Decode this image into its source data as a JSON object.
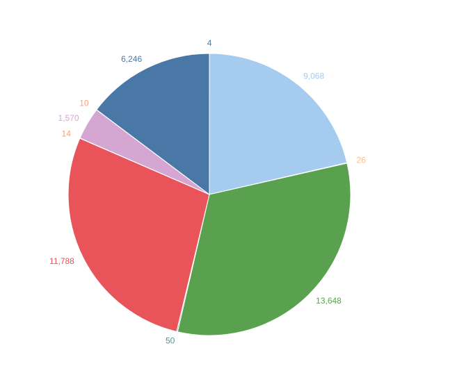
{
  "chart_data": {
    "type": "pie",
    "values": [
      4,
      9068,
      26,
      13648,
      50,
      11788,
      14,
      1570,
      10,
      6246
    ],
    "value_labels": [
      "4",
      "9,068",
      "26",
      "13,648",
      "50",
      "11,788",
      "14",
      "1,570",
      "10",
      "6,246"
    ],
    "colors": [
      "#4e79a7",
      "#a5cbef",
      "#ffbe7d",
      "#59a14f",
      "#499894",
      "#e8545a",
      "#f1a07a",
      "#d6a6d2",
      "#ff9d7a",
      "#4a78a6"
    ],
    "start_angle": 0,
    "direction": "clockwise"
  }
}
